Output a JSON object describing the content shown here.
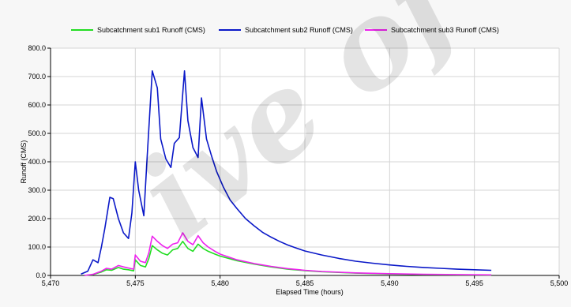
{
  "chart_data": {
    "type": "line",
    "title": "",
    "xlabel": "Elapsed Time (hours)",
    "ylabel": "Runoff (CMS)",
    "xlim": [
      5470,
      5500
    ],
    "ylim": [
      0,
      800
    ],
    "x_ticks": [
      "5,470",
      "5,475",
      "5,480",
      "5,485",
      "5,490",
      "5,495",
      "5,500"
    ],
    "x_tick_values": [
      5470,
      5475,
      5480,
      5485,
      5490,
      5495,
      5500
    ],
    "y_ticks": [
      "0.0",
      "100.0",
      "200.0",
      "300.0",
      "400.0",
      "500.0",
      "600.0",
      "700.0",
      "800.0"
    ],
    "y_tick_values": [
      0,
      100,
      200,
      300,
      400,
      500,
      600,
      700,
      800
    ],
    "grid": true,
    "legend_position": "top",
    "series": [
      {
        "name": "Subcatchment sub1 Runoff (CMS)",
        "color": "#22dd22",
        "x": [
          5472,
          5472.5,
          5473,
          5473.3,
          5473.6,
          5474,
          5474.3,
          5474.6,
          5474.9,
          5475.0,
          5475.3,
          5475.6,
          5475.8,
          5476.0,
          5476.3,
          5476.6,
          5476.9,
          5477.2,
          5477.5,
          5477.8,
          5478.1,
          5478.4,
          5478.7,
          5479.0,
          5479.3,
          5479.7,
          5480.0,
          5481.0,
          5482.0,
          5483.0,
          5484.0,
          5485.0,
          5486.0,
          5488.0,
          5490.0,
          5492.0,
          5494.0,
          5496.0
        ],
        "y": [
          0,
          3,
          12,
          20,
          18,
          28,
          22,
          20,
          16,
          55,
          35,
          30,
          60,
          105,
          90,
          78,
          72,
          90,
          95,
          120,
          95,
          85,
          110,
          95,
          85,
          75,
          68,
          52,
          40,
          30,
          22,
          17,
          13,
          8,
          5,
          3,
          2,
          1
        ]
      },
      {
        "name": "Subcatchment sub2 Runoff (CMS)",
        "color": "#0a18c8",
        "x": [
          5471.8,
          5472.2,
          5472.5,
          5472.8,
          5473.0,
          5473.2,
          5473.5,
          5473.7,
          5474.0,
          5474.3,
          5474.6,
          5474.8,
          5475.0,
          5475.2,
          5475.5,
          5475.7,
          5476.0,
          5476.3,
          5476.5,
          5476.8,
          5477.1,
          5477.3,
          5477.6,
          5477.9,
          5478.1,
          5478.4,
          5478.7,
          5478.9,
          5479.2,
          5479.5,
          5479.8,
          5480.2,
          5480.6,
          5481.0,
          5481.5,
          5482.0,
          5482.5,
          5483.0,
          5483.5,
          5484.0,
          5484.5,
          5485.0,
          5486.0,
          5487.0,
          5488.0,
          5489.0,
          5490.0,
          5491.0,
          5492.0,
          5493.0,
          5494.0,
          5495.0,
          5496.0
        ],
        "y": [
          5,
          15,
          55,
          45,
          100,
          165,
          275,
          270,
          200,
          150,
          130,
          220,
          400,
          300,
          210,
          420,
          720,
          660,
          480,
          410,
          380,
          465,
          485,
          720,
          545,
          450,
          415,
          625,
          480,
          420,
          365,
          310,
          265,
          235,
          200,
          175,
          152,
          135,
          120,
          107,
          96,
          86,
          72,
          60,
          50,
          43,
          37,
          32,
          28,
          25,
          22,
          20,
          18
        ]
      },
      {
        "name": "Subcatchment sub3 Runoff (CMS)",
        "color": "#ee22ee",
        "x": [
          5472,
          5472.5,
          5473,
          5473.3,
          5473.6,
          5474,
          5474.3,
          5474.6,
          5474.9,
          5475.0,
          5475.3,
          5475.6,
          5475.8,
          5476.0,
          5476.3,
          5476.6,
          5476.9,
          5477.2,
          5477.5,
          5477.8,
          5478.1,
          5478.4,
          5478.7,
          5479.0,
          5479.3,
          5479.7,
          5480.0,
          5481.0,
          5482.0,
          5483.0,
          5484.0,
          5485.0,
          5486.0,
          5488.0,
          5490.0,
          5492.0,
          5494.0,
          5496.0
        ],
        "y": [
          0,
          4,
          15,
          25,
          22,
          35,
          30,
          26,
          22,
          72,
          50,
          45,
          80,
          138,
          120,
          105,
          95,
          110,
          115,
          150,
          120,
          108,
          140,
          115,
          100,
          85,
          75,
          55,
          42,
          32,
          24,
          18,
          14,
          9,
          6,
          4,
          3,
          2
        ]
      }
    ]
  }
}
